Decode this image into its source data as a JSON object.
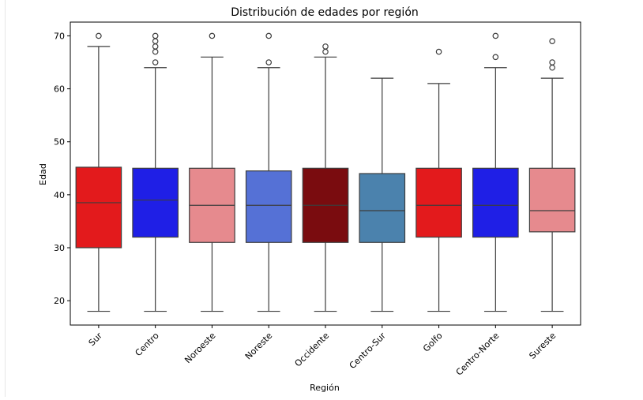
{
  "chart_data": {
    "type": "box",
    "title": "Distribución de edades por región",
    "xlabel": "Región",
    "ylabel": "Edad",
    "ylim": [
      15.4,
      72.6
    ],
    "yticks": [
      20,
      30,
      40,
      50,
      60,
      70
    ],
    "grid": false,
    "categories": [
      "Sur",
      "Centro",
      "Noroeste",
      "Noreste",
      "Occidente",
      "Centro-Sur",
      "Golfo",
      "Centro-Norte",
      "Sureste"
    ],
    "colors": [
      "#e31a1c",
      "#1f1fe6",
      "#e68a8e",
      "#5571d6",
      "#7a0c0f",
      "#4b82ad",
      "#e31a1c",
      "#1f1fe6",
      "#e68a8e"
    ],
    "boxes": [
      {
        "whisker_low": 18,
        "q1": 30,
        "median": 38.5,
        "q3": 45.2,
        "whisker_high": 68,
        "outliers": [
          70
        ]
      },
      {
        "whisker_low": 18,
        "q1": 32,
        "median": 39,
        "q3": 45,
        "whisker_high": 64,
        "outliers": [
          65,
          67,
          68,
          69,
          70
        ]
      },
      {
        "whisker_low": 18,
        "q1": 31,
        "median": 38,
        "q3": 45,
        "whisker_high": 66,
        "outliers": [
          70
        ]
      },
      {
        "whisker_low": 18,
        "q1": 31,
        "median": 38,
        "q3": 44.5,
        "whisker_high": 64,
        "outliers": [
          65,
          70
        ]
      },
      {
        "whisker_low": 18,
        "q1": 31,
        "median": 38,
        "q3": 45,
        "whisker_high": 66,
        "outliers": [
          67,
          68
        ]
      },
      {
        "whisker_low": 18,
        "q1": 31,
        "median": 37,
        "q3": 44,
        "whisker_high": 62,
        "outliers": []
      },
      {
        "whisker_low": 18,
        "q1": 32,
        "median": 38,
        "q3": 45,
        "whisker_high": 61,
        "outliers": [
          67
        ]
      },
      {
        "whisker_low": 18,
        "q1": 32,
        "median": 38,
        "q3": 45,
        "whisker_high": 64,
        "outliers": [
          66,
          70
        ]
      },
      {
        "whisker_low": 18,
        "q1": 33,
        "median": 37,
        "q3": 45,
        "whisker_high": 62,
        "outliers": [
          64,
          65,
          69
        ]
      }
    ]
  }
}
